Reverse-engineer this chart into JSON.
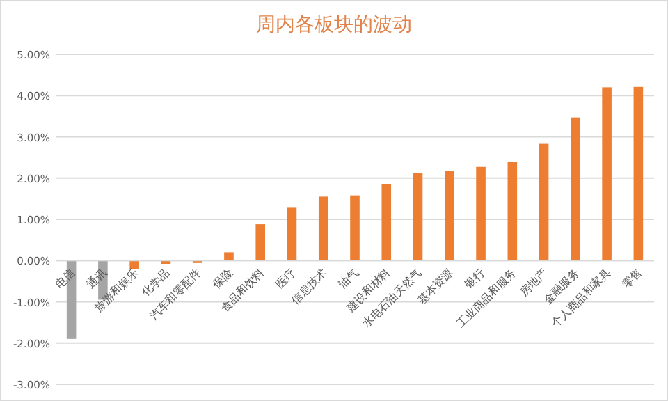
{
  "chart_data": {
    "type": "bar",
    "title": "周内各板块的波动",
    "categories": [
      "电信",
      "通讯",
      "旅游和娱乐",
      "化学品",
      "汽车和零配件",
      "保险",
      "食品和饮料",
      "医疗",
      "信息技术",
      "油气",
      "建设和材料",
      "水电石油天然气",
      "基本资源",
      "银行",
      "工业商品和服务",
      "房地产",
      "金融服务",
      "个人商品和家具",
      "零售"
    ],
    "values": [
      -1.9,
      -0.95,
      -0.2,
      -0.08,
      -0.06,
      0.2,
      0.88,
      1.28,
      1.55,
      1.58,
      1.85,
      2.13,
      2.17,
      2.27,
      2.4,
      2.83,
      3.47,
      4.2,
      4.21
    ],
    "colors": [
      "#a5a5a5",
      "#a5a5a5",
      "#ed7d31",
      "#ed7d31",
      "#ed7d31",
      "#ed7d31",
      "#ed7d31",
      "#ed7d31",
      "#ed7d31",
      "#ed7d31",
      "#ed7d31",
      "#ed7d31",
      "#ed7d31",
      "#ed7d31",
      "#ed7d31",
      "#ed7d31",
      "#ed7d31",
      "#ed7d31",
      "#ed7d31"
    ],
    "ylim": [
      -3,
      5
    ],
    "yticks": [
      {
        "value": -3,
        "label": "-3.00%"
      },
      {
        "value": -2,
        "label": "-2.00%"
      },
      {
        "value": -1,
        "label": "-1.00%"
      },
      {
        "value": 0,
        "label": "0.00%"
      },
      {
        "value": 1,
        "label": "1.00%"
      },
      {
        "value": 2,
        "label": "2.00%"
      },
      {
        "value": 3,
        "label": "3.00%"
      },
      {
        "value": 4,
        "label": "4.00%"
      },
      {
        "value": 5,
        "label": "5.00%"
      }
    ],
    "grid": "y"
  }
}
